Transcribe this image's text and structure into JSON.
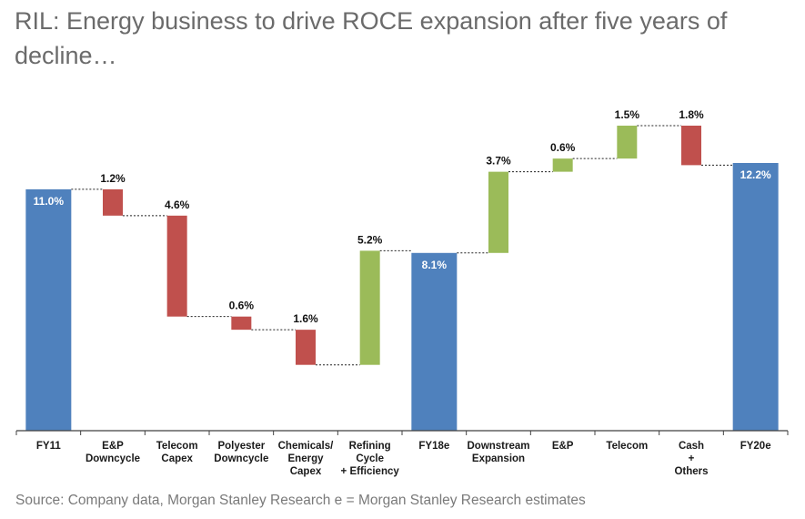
{
  "title": "RIL: Energy business to drive ROCE expansion after five years of decline…",
  "source": "Source: Company data, Morgan Stanley Research e = Morgan Stanley Research estimates",
  "colors": {
    "total": "#4f81bd",
    "decrease": "#c0504d",
    "increase": "#9bbb59",
    "axis": "#404040",
    "connector": "#222222"
  },
  "chart_data": {
    "type": "bar",
    "subtype": "waterfall",
    "ylim": [
      0,
      16.5
    ],
    "grid": false,
    "legend": "none",
    "categories": [
      [
        "FY11"
      ],
      [
        "E&P",
        "Downcycle"
      ],
      [
        "Telecom",
        "Capex"
      ],
      [
        "Polyester",
        "Downcycle"
      ],
      [
        "Chemicals/",
        "Energy",
        "Capex"
      ],
      [
        "Refining",
        "Cycle",
        "+ Efficiency"
      ],
      [
        "FY18e"
      ],
      [
        "Downstream",
        "Expansion"
      ],
      [
        "E&P"
      ],
      [
        "Telecom"
      ],
      [
        "Cash",
        "+",
        "Others"
      ],
      [
        "FY20e"
      ]
    ],
    "bars": [
      {
        "kind": "total",
        "value": 11.0,
        "label": "11.0%"
      },
      {
        "kind": "decrease",
        "value": 1.2,
        "label": "1.2%"
      },
      {
        "kind": "decrease",
        "value": 4.6,
        "label": "4.6%"
      },
      {
        "kind": "decrease",
        "value": 0.6,
        "label": "0.6%"
      },
      {
        "kind": "decrease",
        "value": 1.6,
        "label": "1.6%"
      },
      {
        "kind": "increase",
        "value": 5.2,
        "label": "5.2%"
      },
      {
        "kind": "total",
        "value": 8.1,
        "label": "8.1%"
      },
      {
        "kind": "increase",
        "value": 3.7,
        "label": "3.7%"
      },
      {
        "kind": "increase",
        "value": 0.6,
        "label": "0.6%"
      },
      {
        "kind": "increase",
        "value": 1.5,
        "label": "1.5%"
      },
      {
        "kind": "decrease",
        "value": 1.8,
        "label": "1.8%"
      },
      {
        "kind": "total",
        "value": 12.2,
        "label": "12.2%"
      }
    ]
  }
}
